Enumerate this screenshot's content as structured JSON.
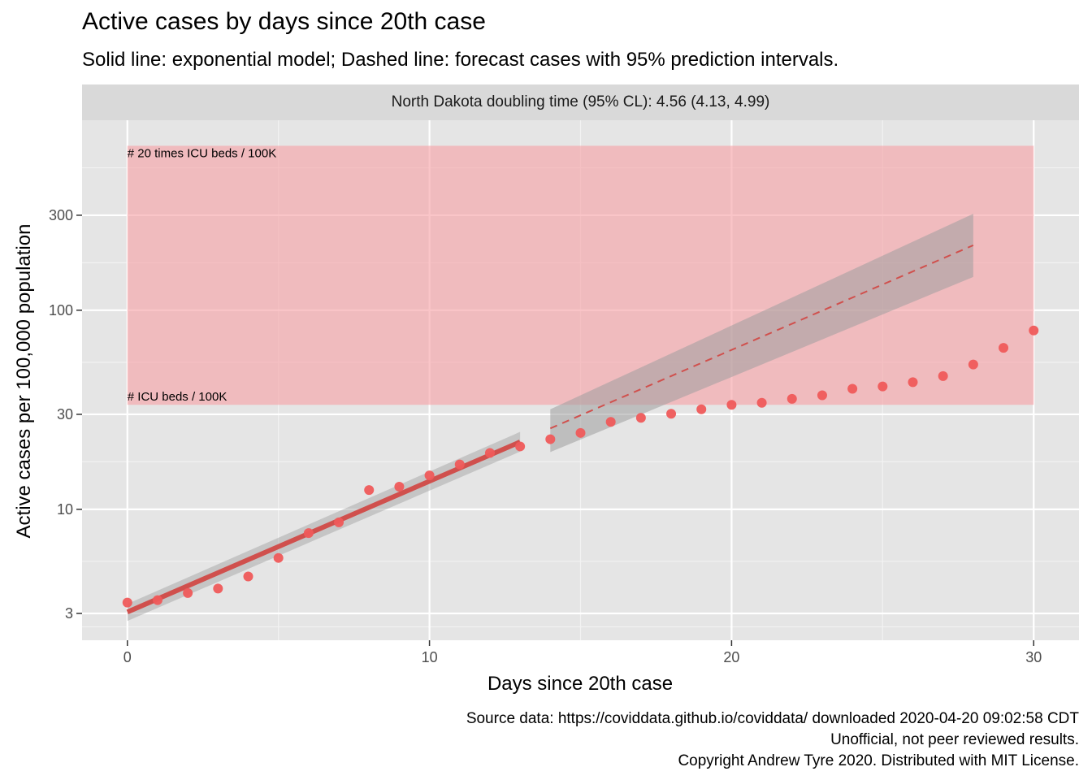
{
  "chart_data": {
    "type": "scatter",
    "title": "Active cases by days since 20th case",
    "subtitle": "Solid line: exponential model; Dashed line: forecast cases with 95% prediction intervals.",
    "facet_label": "North Dakota doubling time (95% CL): 4.56 (4.13, 4.99)",
    "xlabel": "Days since 20th case",
    "ylabel": "Active cases per 100,000 population",
    "y_scale": "log",
    "xlim": [
      -1.5,
      31.5
    ],
    "ylim": [
      2.2,
      900
    ],
    "x_ticks": [
      0,
      10,
      20,
      30
    ],
    "y_ticks": [
      3,
      10,
      30,
      100,
      300
    ],
    "grid": true,
    "colors": {
      "panel": "#e5e5e5",
      "points": "#ef5a5a",
      "model_line": "#d0504d",
      "ribbon": "#9e9e9e",
      "icu_band": "#f7a1a6"
    },
    "icu_band": {
      "x": [
        0,
        30
      ],
      "y": [
        33.5,
        670
      ],
      "label_low": "# ICU beds / 100K",
      "label_high": "# 20 times ICU beds / 100K"
    },
    "observed": {
      "x": [
        0,
        1,
        2,
        3,
        4,
        5,
        6,
        7,
        8,
        9,
        10,
        11,
        12,
        13,
        14,
        15,
        16,
        17,
        18,
        19,
        20,
        21,
        22,
        23,
        24,
        25,
        26,
        27,
        28,
        29,
        30
      ],
      "y": [
        3.4,
        3.5,
        3.8,
        4.0,
        4.6,
        5.7,
        7.6,
        8.6,
        12.5,
        13.0,
        14.8,
        16.8,
        19.2,
        20.7,
        22.5,
        24.2,
        27.5,
        28.8,
        30.2,
        31.8,
        33.5,
        34.3,
        35.9,
        37.4,
        40.3,
        41.4,
        43.5,
        46.7,
        53.4,
        64.7,
        79.1
      ]
    },
    "model_fit": {
      "x": [
        0,
        13
      ],
      "y": [
        3.05,
        21.8
      ],
      "ci_low": [
        2.75,
        19.5
      ],
      "ci_high": [
        3.35,
        24.5
      ]
    },
    "forecast": {
      "x": [
        14,
        28
      ],
      "y": [
        25.5,
        212
      ],
      "pi_low": [
        19.4,
        147
      ],
      "pi_high": [
        31.8,
        305
      ]
    }
  },
  "caption": {
    "line1": "Source data: https://coviddata.github.io/coviddata/ downloaded  2020-04-20 09:02:58 CDT",
    "line2": "Unofficial, not peer reviewed results.",
    "line3": "Copyright Andrew Tyre 2020. Distributed with MIT License."
  }
}
